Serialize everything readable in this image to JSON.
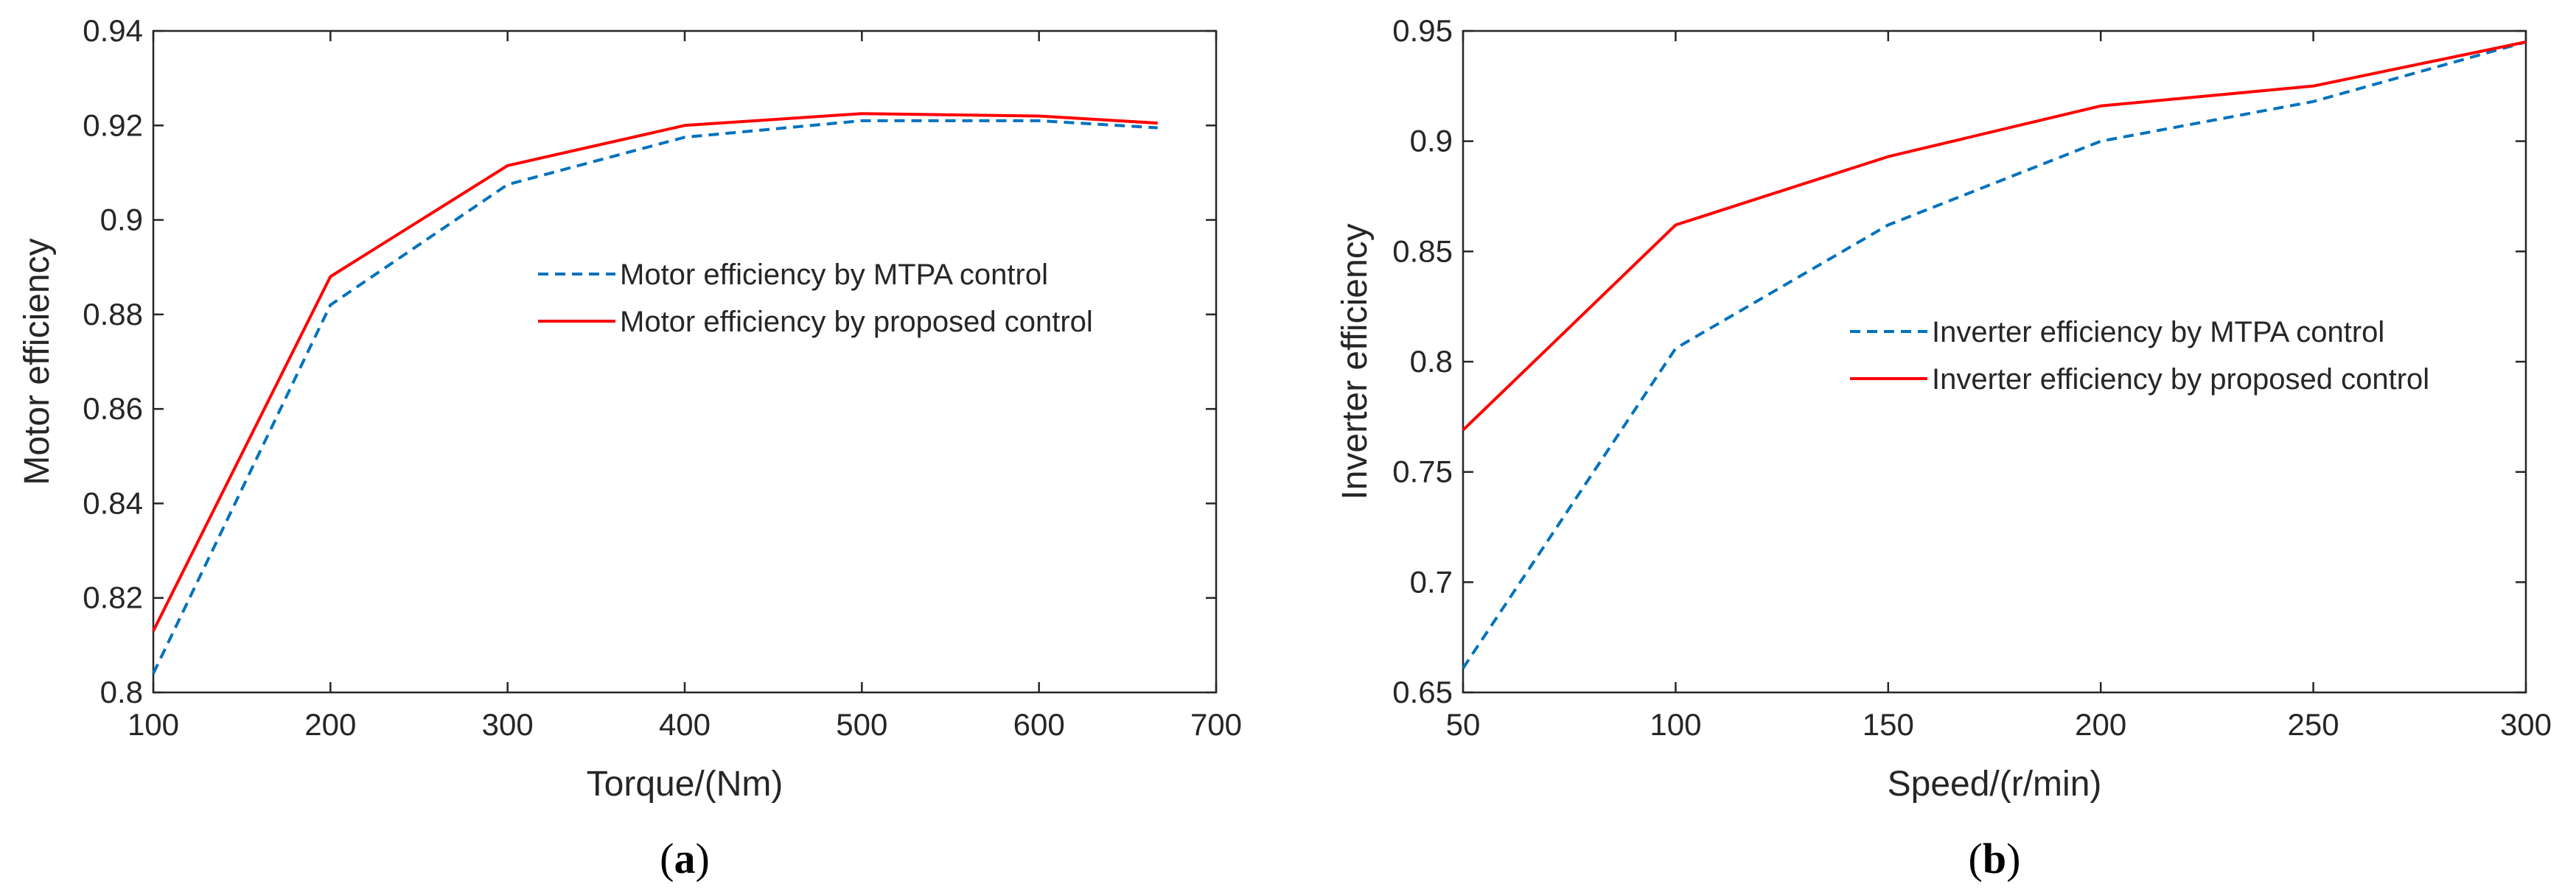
{
  "chart_data": [
    {
      "type": "line",
      "panel": "(a)",
      "xlabel": "Torque/(Nm)",
      "ylabel": "Motor efficiency",
      "xlim": [
        100,
        700
      ],
      "ylim": [
        0.8,
        0.94
      ],
      "xticks": [
        100,
        200,
        300,
        400,
        500,
        600,
        700
      ],
      "yticks": [
        0.8,
        0.82,
        0.84,
        0.86,
        0.88,
        0.9,
        0.92,
        0.94
      ],
      "x_tick_labels": [
        "100",
        "200",
        "300",
        "400",
        "500",
        "600",
        "700"
      ],
      "y_tick_labels": [
        "0.8",
        "0.82",
        "0.84",
        "0.86",
        "0.88",
        "0.9",
        "0.92",
        "0.94"
      ],
      "legend_position": "center-right",
      "series": [
        {
          "name": "Motor efficiency by MTPA control",
          "color": "#0072BD",
          "style": "dashed",
          "x": [
            100,
            200,
            300,
            400,
            500,
            600,
            667
          ],
          "y": [
            0.804,
            0.882,
            0.9075,
            0.9175,
            0.921,
            0.921,
            0.9195
          ]
        },
        {
          "name": "Motor efficiency by proposed control",
          "color": "#FF0000",
          "style": "solid",
          "x": [
            100,
            200,
            300,
            400,
            500,
            600,
            667
          ],
          "y": [
            0.813,
            0.888,
            0.9115,
            0.92,
            0.9225,
            0.922,
            0.9205
          ]
        }
      ]
    },
    {
      "type": "line",
      "panel": "(b)",
      "xlabel": "Speed/(r/min)",
      "ylabel": "Inverter efficiency",
      "xlim": [
        50,
        300
      ],
      "ylim": [
        0.65,
        0.95
      ],
      "xticks": [
        50,
        100,
        150,
        200,
        250,
        300
      ],
      "yticks": [
        0.65,
        0.7,
        0.75,
        0.8,
        0.85,
        0.9,
        0.95
      ],
      "x_tick_labels": [
        "50",
        "100",
        "150",
        "200",
        "250",
        "300"
      ],
      "y_tick_labels": [
        "0.65",
        "0.7",
        "0.75",
        "0.8",
        "0.85",
        "0.9",
        "0.95"
      ],
      "legend_position": "center-right",
      "series": [
        {
          "name": "Inverter efficiency by MTPA control",
          "color": "#0072BD",
          "style": "dashed",
          "x": [
            50,
            100,
            150,
            200,
            250,
            300
          ],
          "y": [
            0.661,
            0.806,
            0.862,
            0.9,
            0.918,
            0.945
          ]
        },
        {
          "name": "Inverter efficiency by proposed control",
          "color": "#FF0000",
          "style": "solid",
          "x": [
            50,
            100,
            150,
            200,
            250,
            300
          ],
          "y": [
            0.769,
            0.862,
            0.893,
            0.916,
            0.925,
            0.945
          ]
        }
      ]
    }
  ]
}
